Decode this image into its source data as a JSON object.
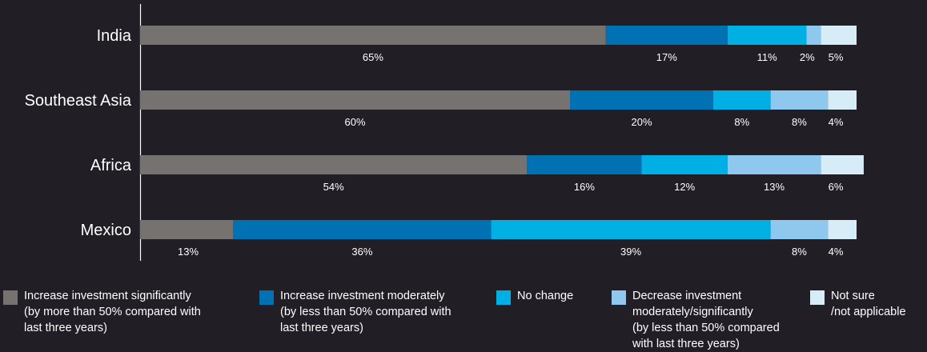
{
  "chart_data": {
    "type": "bar",
    "orientation": "horizontal",
    "stacked": true,
    "categories": [
      "India",
      "Southeast Asia",
      "Africa",
      "Mexico"
    ],
    "series": [
      {
        "name": "Increase investment significantly\n(by more than 50% compared with\nlast three years)",
        "color": "#767270",
        "values": [
          65,
          60,
          54,
          13
        ]
      },
      {
        "name": "Increase investment moderately\n(by less than 50% compared with\nlast three years)",
        "color": "#0072b3",
        "values": [
          17,
          20,
          16,
          36
        ]
      },
      {
        "name": "No change",
        "color": "#00b0e4",
        "values": [
          11,
          8,
          12,
          39
        ]
      },
      {
        "name": "Decrease investment\nmoderately/significantly\n(by less than 50% compared\nwith last three years)",
        "color": "#8ec8ef",
        "values": [
          2,
          8,
          13,
          8
        ]
      },
      {
        "name": "Not sure\n/not applicable",
        "color": "#d6edf8",
        "values": [
          5,
          4,
          6,
          4
        ]
      }
    ],
    "value_suffix": "%",
    "xlim": [
      0,
      100
    ],
    "grid": false,
    "legend": "bottom"
  }
}
